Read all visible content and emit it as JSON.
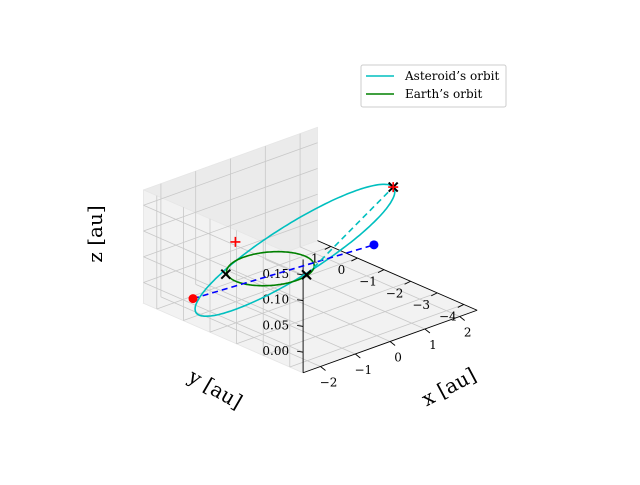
{
  "chart_data": {
    "type": "line",
    "projection": "3d",
    "title": "",
    "xlabel": "x [au]",
    "ylabel": "y [au]",
    "zlabel": "z [au]",
    "xlim": [
      -2.5,
      2.5
    ],
    "ylim": [
      -4.5,
      1.5
    ],
    "zlim": [
      -0.04,
      0.18
    ],
    "x_ticks": [
      "−2",
      "−1",
      "0",
      "1",
      "2"
    ],
    "y_ticks": [
      "1",
      "0",
      "−1",
      "−2",
      "−3",
      "−4"
    ],
    "z_ticks": [
      "0.00",
      "0.05",
      "0.10",
      "0.15"
    ],
    "grid": true,
    "legend_position": "top-right",
    "series": [
      {
        "name": "Asteroid’s orbit",
        "color": "#00bfbf",
        "kind": "ellipse",
        "center": [
          -0.25,
          -1.25,
          0.07
        ],
        "axis_major": [
          2.25,
          -0.75,
          0.085
        ],
        "axis_minor": [
          0.4,
          1.2,
          0.0
        ]
      },
      {
        "name": "Earth’s orbit",
        "color": "#008000",
        "kind": "ellipse",
        "center": [
          0,
          0,
          0
        ],
        "axis_major": [
          1.0,
          0.0,
          0.0
        ],
        "axis_minor": [
          0.0,
          1.0,
          0.0
        ]
      }
    ],
    "segments": [
      {
        "color": "#0000ff",
        "dashed": true,
        "from": [
          -2.3,
          -0.1,
          0.0
        ],
        "to": [
          1.6,
          -1.8,
          0.048
        ]
      },
      {
        "color": "#00bfbf",
        "dashed": true,
        "from": [
          0.35,
          -0.9,
          0.0
        ],
        "to": [
          2.0,
          -2.0,
          0.155
        ]
      }
    ],
    "markers": [
      {
        "symbol": "circle",
        "color": "#ff0000",
        "point": [
          -2.3,
          -0.1,
          0.0
        ]
      },
      {
        "symbol": "circle",
        "color": "#0000ff",
        "point": [
          1.6,
          -1.8,
          0.048
        ]
      },
      {
        "symbol": "plus",
        "color": "#ff0000",
        "point": [
          -0.7,
          0.4,
          0.06
        ]
      },
      {
        "symbol": "x",
        "color": "#000000",
        "point": [
          -0.9,
          0.5,
          0.0
        ]
      },
      {
        "symbol": "x",
        "color": "#000000",
        "point": [
          0.35,
          -0.9,
          0.0
        ]
      },
      {
        "symbol": "x",
        "color": "#000000",
        "point": [
          2.0,
          -2.0,
          0.155
        ]
      },
      {
        "symbol": "plus",
        "color": "#ff0000",
        "point": [
          2.0,
          -2.0,
          0.155
        ]
      }
    ]
  }
}
